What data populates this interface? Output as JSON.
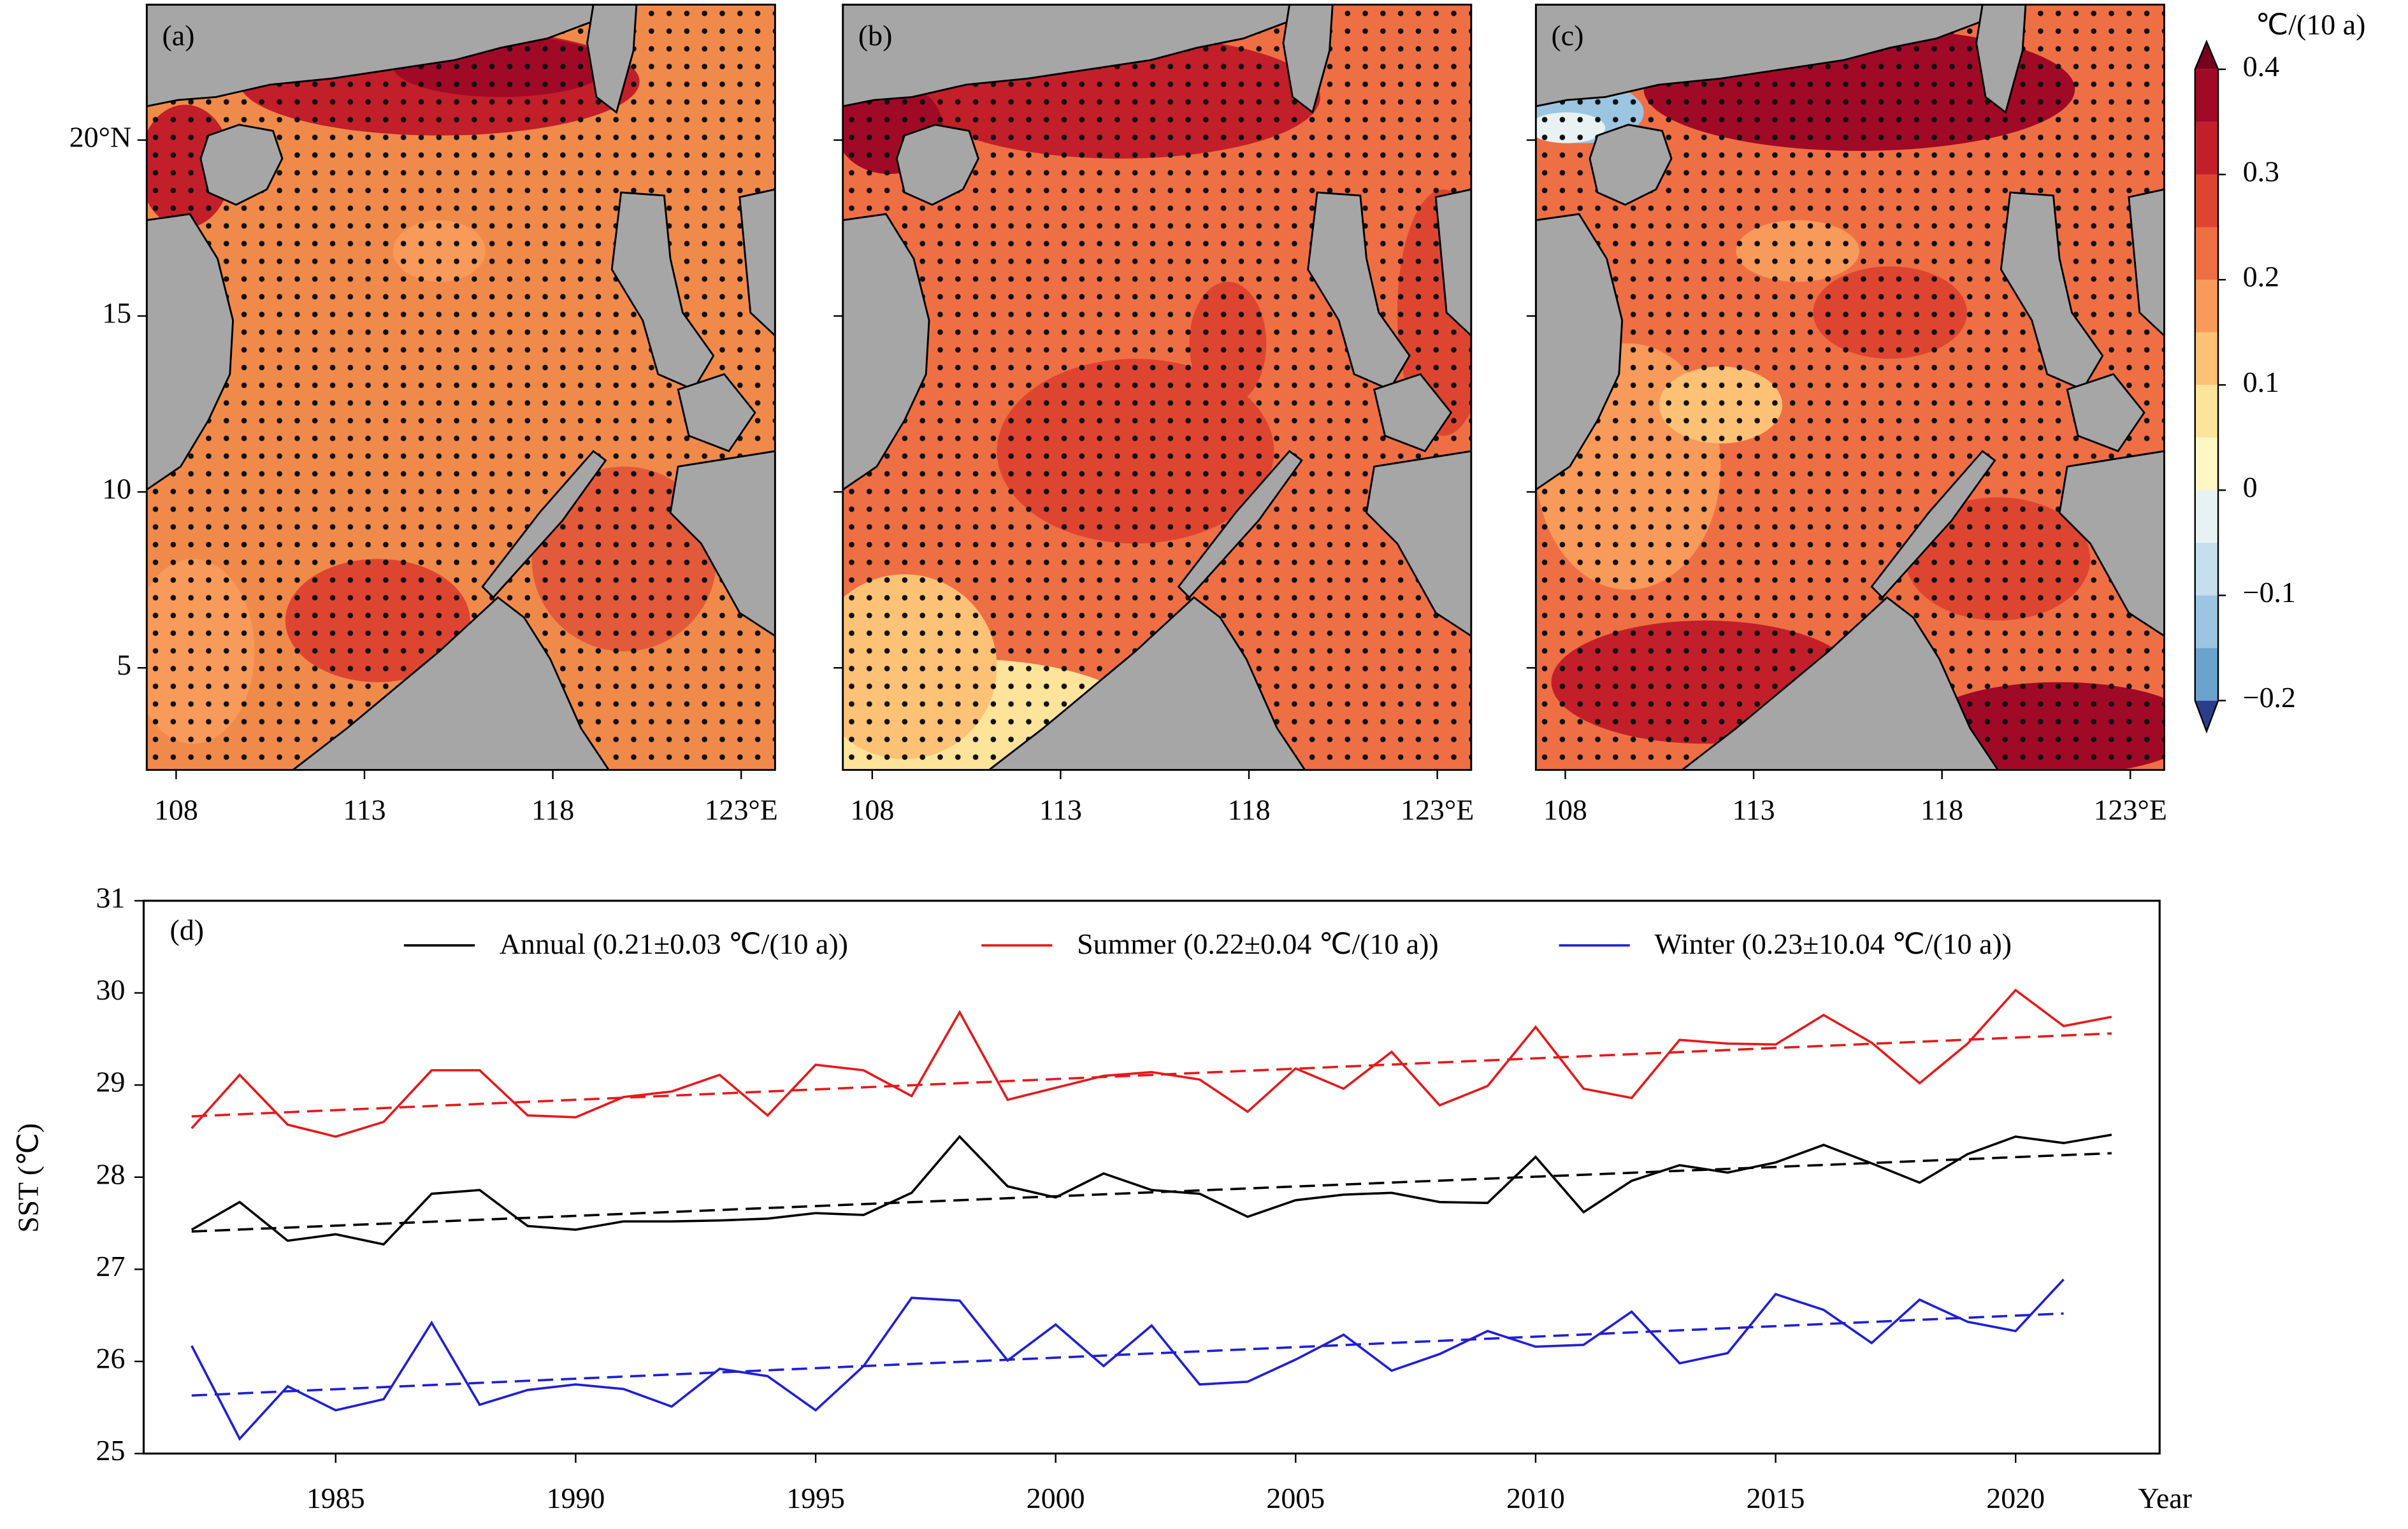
{
  "chart_data": [
    {
      "type": "map",
      "panels": [
        "(a)",
        "(b)",
        "(c)"
      ],
      "xlim": [
        107.22,
        123.9
      ],
      "ylim": [
        2.1,
        23.85
      ],
      "xticks": [
        108,
        113,
        118,
        {
          "value": 123,
          "label": "123°E"
        }
      ],
      "yticks": [
        5,
        10,
        15,
        {
          "value": 20,
          "label": "20°N"
        }
      ],
      "colorbar": {
        "label": "℃/(10 a)",
        "lim": [
          -0.2,
          0.4
        ],
        "ticks": [
          {
            "value": -0.2,
            "label": "−0.2"
          },
          {
            "value": -0.1,
            "label": "−0.1"
          },
          0,
          0.1,
          0.2,
          0.3,
          0.4
        ],
        "levels": [
          -0.2,
          -0.15,
          -0.1,
          -0.05,
          0,
          0.05,
          0.1,
          0.15,
          0.2,
          0.25,
          0.3,
          0.35,
          0.4
        ],
        "colors": [
          "#6ba3cf",
          "#9cc5e1",
          "#c5dfee",
          "#e8f2f3",
          "#fef6c4",
          "#fee39a",
          "#fdc276",
          "#f89a5a",
          "#ef6f45",
          "#de4531",
          "#c21f2a",
          "#a00a26"
        ],
        "extend_colors": [
          "#2b3e8c",
          "#7a0020"
        ]
      }
    },
    {
      "type": "line",
      "label": "(d)",
      "ylabel": "SST (℃)",
      "xlabel": "Year",
      "x": [
        1982,
        1983,
        1984,
        1985,
        1986,
        1987,
        1988,
        1989,
        1990,
        1991,
        1992,
        1993,
        1994,
        1995,
        1996,
        1997,
        1998,
        1999,
        2000,
        2001,
        2002,
        2003,
        2004,
        2005,
        2006,
        2007,
        2008,
        2009,
        2010,
        2011,
        2012,
        2013,
        2014,
        2015,
        2016,
        2017,
        2018,
        2019,
        2020,
        2021,
        2022
      ],
      "series": [
        {
          "name": "Annual (0.21±0.03 ℃/(10 a))",
          "color": "#000000",
          "values": [
            27.43,
            27.73,
            27.31,
            27.38,
            27.27,
            27.82,
            27.86,
            27.47,
            27.43,
            27.52,
            27.52,
            27.53,
            27.55,
            27.61,
            27.59,
            27.83,
            28.44,
            27.9,
            27.78,
            28.04,
            27.86,
            27.82,
            27.57,
            27.75,
            27.81,
            27.83,
            27.73,
            27.72,
            28.22,
            27.62,
            27.96,
            28.13,
            28.05,
            28.16,
            28.35,
            28.15,
            27.94,
            28.25,
            28.44,
            28.37,
            28.46
          ],
          "trend_x": [
            1982,
            2022
          ],
          "trend": [
            27.41,
            28.26
          ]
        },
        {
          "name": "Summer (0.22±0.04 ℃/(10 a))",
          "color": "#e41a1c",
          "values": [
            28.53,
            29.11,
            28.57,
            28.44,
            28.6,
            29.16,
            29.16,
            28.67,
            28.65,
            28.87,
            28.93,
            29.11,
            28.67,
            29.22,
            29.16,
            28.88,
            29.79,
            28.84,
            28.97,
            29.1,
            29.14,
            29.06,
            28.71,
            29.18,
            28.96,
            29.36,
            28.78,
            28.99,
            29.63,
            28.96,
            28.86,
            29.49,
            29.45,
            29.44,
            29.76,
            29.46,
            29.02,
            29.45,
            30.03,
            29.64,
            29.74
          ],
          "trend_x": [
            1982,
            2022
          ],
          "trend": [
            28.66,
            29.56
          ]
        },
        {
          "name": "Winter (0.23±10.04 ℃/(10 a))",
          "color": "#1f1fd6",
          "values": [
            26.17,
            25.16,
            25.73,
            25.47,
            25.59,
            26.42,
            25.53,
            25.69,
            25.75,
            25.7,
            25.51,
            25.92,
            25.84,
            25.47,
            25.95,
            26.69,
            26.66,
            26.01,
            26.4,
            25.95,
            26.39,
            25.75,
            25.78,
            26.02,
            26.29,
            25.9,
            26.08,
            26.33,
            26.16,
            26.18,
            26.54,
            25.98,
            26.09,
            26.73,
            26.56,
            26.2,
            26.67,
            26.43,
            26.33,
            26.89,
            null
          ],
          "trend_x": [
            1982,
            2021
          ],
          "trend": [
            25.63,
            26.52
          ]
        }
      ],
      "xlim": [
        1981,
        2023
      ],
      "xticks": [
        1985,
        1990,
        1995,
        2000,
        2005,
        2010,
        2015,
        2020
      ],
      "ylim": [
        25,
        31
      ],
      "yticks": [
        25,
        26,
        27,
        28,
        29,
        30,
        31
      ]
    }
  ]
}
